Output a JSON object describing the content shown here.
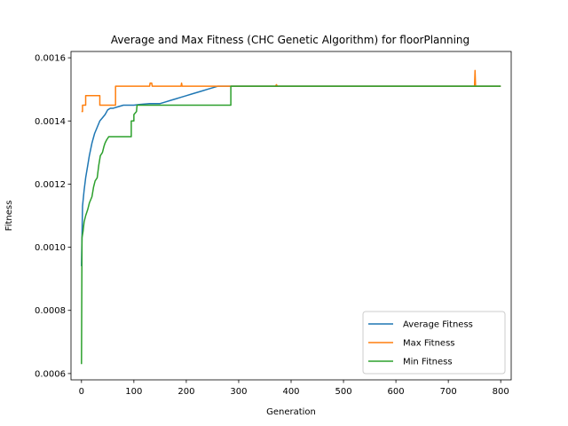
{
  "chart_data": {
    "type": "line",
    "title": "Average and Max Fitness (CHC Genetic Algorithm) for floorPlanning",
    "xlabel": "Generation",
    "ylabel": "Fitness",
    "xlim": [
      -20,
      820
    ],
    "ylim": [
      0.00058,
      0.00162
    ],
    "xticks": [
      0,
      100,
      200,
      300,
      400,
      500,
      600,
      700,
      800
    ],
    "xtick_labels": [
      "0",
      "100",
      "200",
      "300",
      "400",
      "500",
      "600",
      "700",
      "800"
    ],
    "yticks": [
      0.0006,
      0.0008,
      0.001,
      0.0012,
      0.0014,
      0.0016
    ],
    "ytick_labels": [
      "0.0006",
      "0.0008",
      "0.0010",
      "0.0012",
      "0.0014",
      "0.0016"
    ],
    "grid": false,
    "legend_position": "lower-right",
    "series": [
      {
        "name": "Average Fitness",
        "color": "#1f77b4",
        "points": [
          [
            0,
            0.00094
          ],
          [
            2,
            0.00113
          ],
          [
            5,
            0.00118
          ],
          [
            8,
            0.00122
          ],
          [
            12,
            0.00126
          ],
          [
            15,
            0.00129
          ],
          [
            20,
            0.00133
          ],
          [
            25,
            0.00136
          ],
          [
            30,
            0.00138
          ],
          [
            35,
            0.0014
          ],
          [
            40,
            0.00141
          ],
          [
            45,
            0.00142
          ],
          [
            50,
            0.001435
          ],
          [
            55,
            0.00144
          ],
          [
            60,
            0.00144
          ],
          [
            70,
            0.001445
          ],
          [
            80,
            0.00145
          ],
          [
            90,
            0.00145
          ],
          [
            100,
            0.00145
          ],
          [
            110,
            0.001452
          ],
          [
            130,
            0.001455
          ],
          [
            150,
            0.001455
          ],
          [
            160,
            0.00146
          ],
          [
            170,
            0.001465
          ],
          [
            180,
            0.00147
          ],
          [
            190,
            0.001475
          ],
          [
            200,
            0.00148
          ],
          [
            210,
            0.001485
          ],
          [
            220,
            0.00149
          ],
          [
            230,
            0.001495
          ],
          [
            240,
            0.0015
          ],
          [
            250,
            0.001505
          ],
          [
            260,
            0.00151
          ],
          [
            280,
            0.00151
          ],
          [
            300,
            0.00151
          ],
          [
            400,
            0.00151
          ],
          [
            500,
            0.00151
          ],
          [
            600,
            0.00151
          ],
          [
            700,
            0.00151
          ],
          [
            800,
            0.00151
          ]
        ]
      },
      {
        "name": "Max Fitness",
        "color": "#ff7f0e",
        "points": [
          [
            0,
            0.00143
          ],
          [
            2,
            0.00143
          ],
          [
            2,
            0.00145
          ],
          [
            8,
            0.00145
          ],
          [
            8,
            0.00148
          ],
          [
            35,
            0.00148
          ],
          [
            35,
            0.00145
          ],
          [
            65,
            0.00145
          ],
          [
            65,
            0.00151
          ],
          [
            130,
            0.00151
          ],
          [
            131,
            0.00152
          ],
          [
            134,
            0.00152
          ],
          [
            135,
            0.00151
          ],
          [
            190,
            0.00151
          ],
          [
            191,
            0.00152
          ],
          [
            192,
            0.00151
          ],
          [
            370,
            0.00151
          ],
          [
            372,
            0.001515
          ],
          [
            374,
            0.00151
          ],
          [
            750,
            0.00151
          ],
          [
            751,
            0.00156
          ],
          [
            752,
            0.00151
          ],
          [
            800,
            0.00151
          ]
        ]
      },
      {
        "name": "Min Fitness",
        "color": "#2ca02c",
        "points": [
          [
            0,
            0.00063
          ],
          [
            1,
            0.00103
          ],
          [
            3,
            0.00105
          ],
          [
            5,
            0.00108
          ],
          [
            8,
            0.0011
          ],
          [
            12,
            0.00112
          ],
          [
            15,
            0.00114
          ],
          [
            20,
            0.00116
          ],
          [
            23,
            0.00119
          ],
          [
            26,
            0.00121
          ],
          [
            30,
            0.00122
          ],
          [
            33,
            0.00126
          ],
          [
            36,
            0.00129
          ],
          [
            40,
            0.0013
          ],
          [
            43,
            0.00132
          ],
          [
            45,
            0.00133
          ],
          [
            48,
            0.00134
          ],
          [
            52,
            0.00135
          ],
          [
            95,
            0.00135
          ],
          [
            95,
            0.0014
          ],
          [
            100,
            0.0014
          ],
          [
            100,
            0.00142
          ],
          [
            105,
            0.00143
          ],
          [
            106,
            0.00145
          ],
          [
            285,
            0.00145
          ],
          [
            285,
            0.00151
          ],
          [
            800,
            0.00151
          ]
        ]
      }
    ]
  }
}
